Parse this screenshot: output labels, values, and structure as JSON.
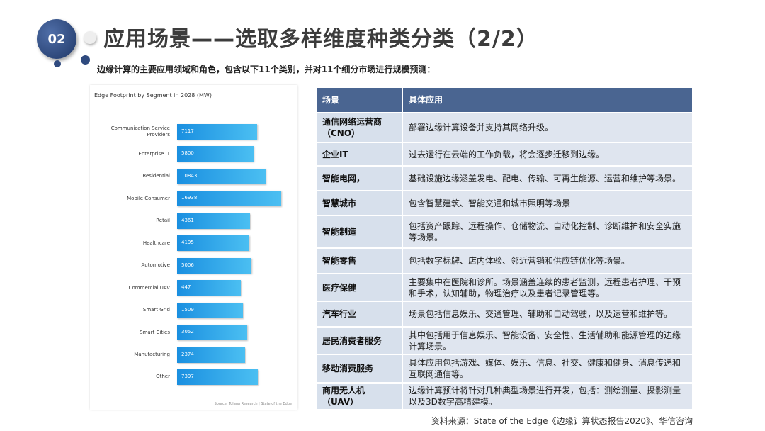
{
  "header": {
    "badge": "02",
    "title": "应用场景——选取多样维度种类分类（2/2）",
    "subtitle": "边缘计算的主要应用领域和角色，包含以下11个类别，并对11个细分市场进行规模预测："
  },
  "chart_data": {
    "type": "bar",
    "orientation": "horizontal",
    "title": "Edge Footprint by Segment in 2028 (MW)",
    "source": "Source: Tolaga Research | State of the Edge",
    "color": "#1a8fe0",
    "categories": [
      "Communication Service Providers",
      "Enterprise IT",
      "Residential",
      "Mobile Consumer",
      "Retail",
      "Healthcare",
      "Automotive",
      "Commercial UAV",
      "Smart Grid",
      "Smart Cities",
      "Manufacturing",
      "Other"
    ],
    "values": [
      7117,
      5800,
      10843,
      16938,
      4361,
      4195,
      5006,
      447,
      1509,
      3052,
      2374,
      7397
    ]
  },
  "table": {
    "header": [
      "场景",
      "具体应用"
    ],
    "rows": [
      [
        "通信网络运营商（CNO）",
        "部署边缘计算设备并支持其网络升级。"
      ],
      [
        "企业IT",
        "过去运行在云端的工作负载，将会逐步迁移到边缘。"
      ],
      [
        "智能电网，",
        "基础设施边缘涵盖发电、配电、传输、可再生能源、运营和维护等场景。"
      ],
      [
        "智慧城市",
        "包含智慧建筑、智能交通和城市照明等场景"
      ],
      [
        "智能制造",
        "包括资产跟踪、远程操作、仓储物流、自动化控制、诊断维护和安全实施等场景。"
      ],
      [
        "智能零售",
        "包括数字标牌、店内体验、邻近营销和供应链优化等场景。"
      ],
      [
        "医疗保健",
        "主要集中在医院和诊所。场景涵盖连续的患者监测，远程患者护理、干预和手术，认知辅助，物理治疗以及患者记录管理等。"
      ],
      [
        "汽车行业",
        "场景包括信息娱乐、交通管理、辅助和自动驾驶，以及运营和维护等。"
      ],
      [
        "居民消费者服务",
        "其中包括用于信息娱乐、智能设备、安全性、生活辅助和能源管理的边缘计算场景。"
      ],
      [
        "移动消费服务",
        "具体应用包括游戏、媒体、娱乐、信息、社交、健康和健身、消息传递和互联网通信等。"
      ],
      [
        "商用无人机（UAV）",
        "边缘计算预计将针对几种典型场景进行开发，包括：测绘测量、摄影测量以及3D数字高精建模。"
      ]
    ]
  },
  "source": "资料来源：State of the Edge《边缘计算状态报告2020》、华信咨询"
}
